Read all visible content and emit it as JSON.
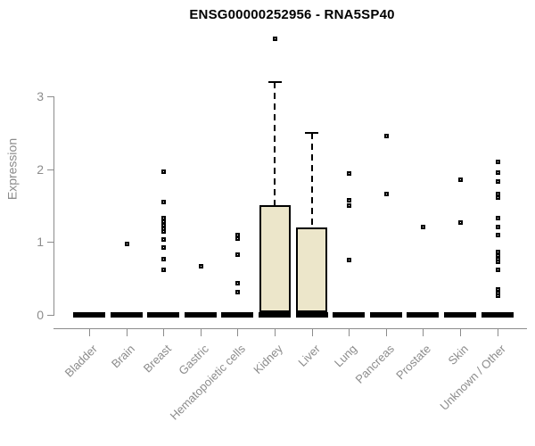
{
  "chart_data": {
    "type": "boxplot",
    "title": "ENSG00000252956 - RNA5SP40",
    "ylabel": "Expression",
    "xlabel": "",
    "yticks": [
      0,
      1,
      2,
      3
    ],
    "ylim": [
      0,
      3.9
    ],
    "grid": false,
    "categories": [
      "Bladder",
      "Brain",
      "Breast",
      "Gastric",
      "Hematopoietic cells",
      "Kidney",
      "Liver",
      "Lung",
      "Pancreas",
      "Prostate",
      "Skin",
      "Unknown / Other"
    ],
    "boxes": [
      {
        "category": "Bladder",
        "q1": 0,
        "median": 0,
        "q3": 0,
        "whisker_low": 0,
        "whisker_high": 0,
        "outliers": []
      },
      {
        "category": "Brain",
        "q1": 0,
        "median": 0,
        "q3": 0,
        "whisker_low": 0,
        "whisker_high": 0,
        "outliers": [
          0.98
        ]
      },
      {
        "category": "Breast",
        "q1": 0,
        "median": 0,
        "q3": 0,
        "whisker_low": 0,
        "whisker_high": 0,
        "outliers": [
          1.97,
          1.55,
          1.34,
          1.28,
          1.24,
          1.19,
          1.15,
          1.04,
          0.93,
          0.77,
          0.62
        ]
      },
      {
        "category": "Gastric",
        "q1": 0,
        "median": 0,
        "q3": 0,
        "whisker_low": 0,
        "whisker_high": 0,
        "outliers": [
          0.67
        ]
      },
      {
        "category": "Hematopoietic cells",
        "q1": 0,
        "median": 0,
        "q3": 0,
        "whisker_low": 0,
        "whisker_high": 0,
        "outliers": [
          1.1,
          1.05,
          0.83,
          0.44,
          0.32
        ]
      },
      {
        "category": "Kidney",
        "q1": 0,
        "median": 0,
        "q3": 1.5,
        "whisker_low": 0,
        "whisker_high": 3.2,
        "outliers": [
          3.8
        ]
      },
      {
        "category": "Liver",
        "q1": 0,
        "median": 0,
        "q3": 1.2,
        "whisker_low": 0,
        "whisker_high": 2.5,
        "outliers": []
      },
      {
        "category": "Lung",
        "q1": 0,
        "median": 0,
        "q3": 0,
        "whisker_low": 0,
        "whisker_high": 0,
        "outliers": [
          1.95,
          1.58,
          1.51,
          0.76
        ]
      },
      {
        "category": "Pancreas",
        "q1": 0,
        "median": 0,
        "q3": 0,
        "whisker_low": 0,
        "whisker_high": 0,
        "outliers": [
          2.46,
          1.67
        ]
      },
      {
        "category": "Prostate",
        "q1": 0,
        "median": 0,
        "q3": 0,
        "whisker_low": 0,
        "whisker_high": 0,
        "outliers": [
          1.21
        ]
      },
      {
        "category": "Skin",
        "q1": 0,
        "median": 0,
        "q3": 0,
        "whisker_low": 0,
        "whisker_high": 0,
        "outliers": [
          1.86,
          1.27
        ]
      },
      {
        "category": "Unknown / Other",
        "q1": 0,
        "median": 0,
        "q3": 0,
        "whisker_low": 0,
        "whisker_high": 0,
        "outliers": [
          2.1,
          1.96,
          1.84,
          1.66,
          1.61,
          1.34,
          1.21,
          1.1,
          0.87,
          0.82,
          0.77,
          0.73,
          0.62,
          0.36,
          0.31,
          0.27
        ]
      }
    ],
    "colors": {
      "box_fill": "#ece6ca",
      "box_border": "#000000",
      "median": "#000000",
      "outlier_point": "#000000",
      "axis": "#8c8c8c",
      "tick_text": "#8c8c8c",
      "title_text": "#000000",
      "background": "#ffffff"
    },
    "legend": null
  }
}
